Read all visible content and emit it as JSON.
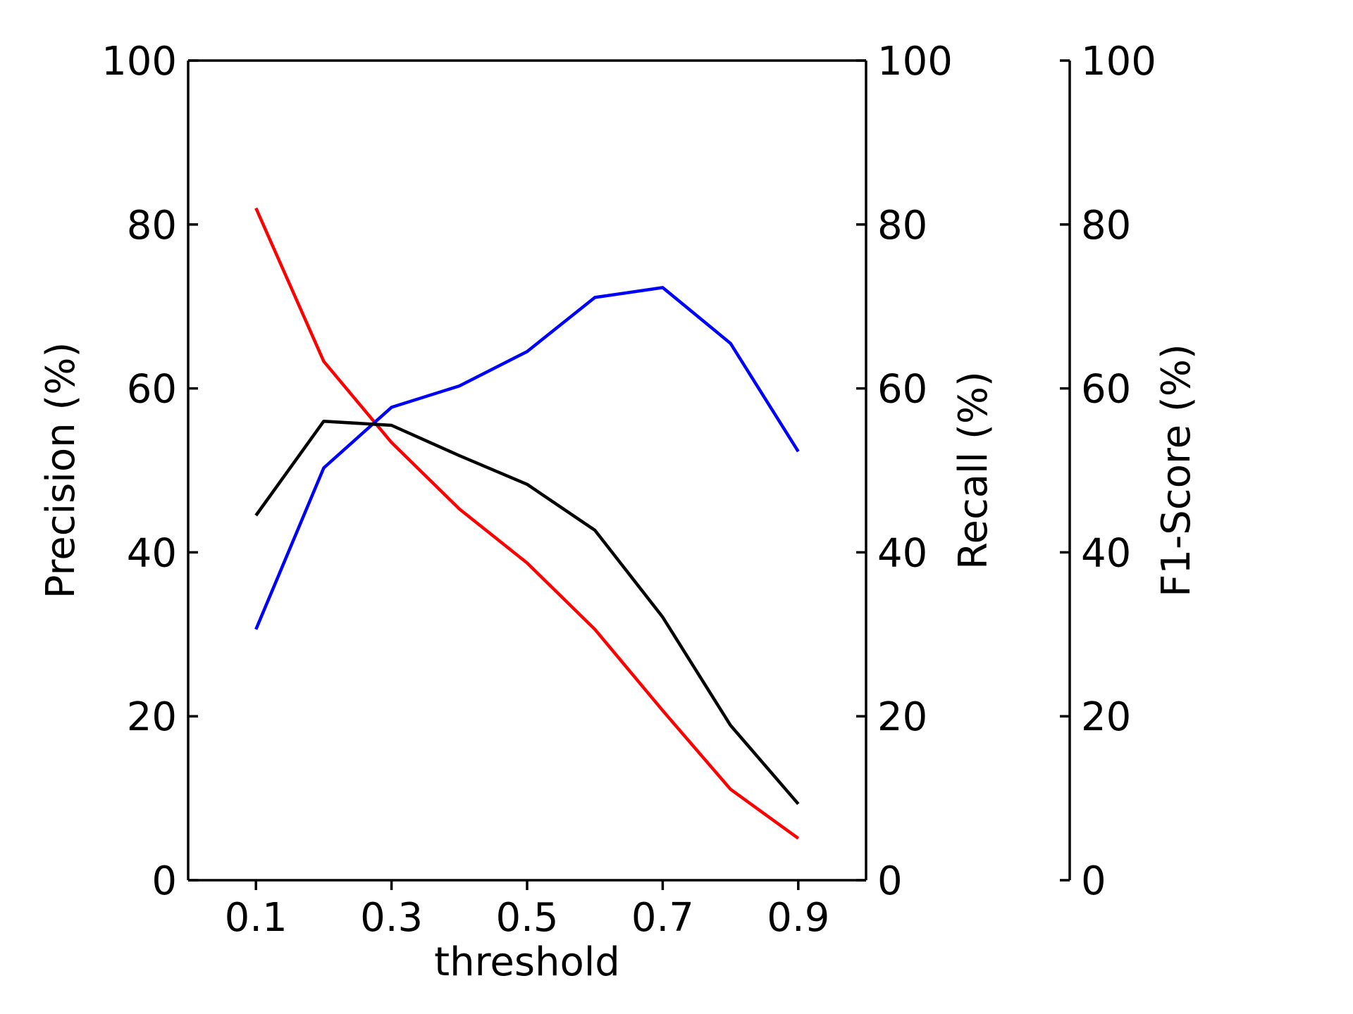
{
  "chart_data": {
    "type": "line",
    "xlabel": "threshold",
    "x_ticks": [
      "0.1",
      "0.3",
      "0.5",
      "0.7",
      "0.9"
    ],
    "x_tick_values": [
      0.1,
      0.3,
      0.5,
      0.7,
      0.9
    ],
    "xlim": [
      0.0,
      1.0
    ],
    "x": [
      0.1,
      0.2,
      0.3,
      0.4,
      0.5,
      0.6,
      0.7,
      0.8,
      0.9
    ],
    "axes": [
      {
        "id": "precision",
        "label": "Precision (%)",
        "position": "left",
        "ylim": [
          0,
          100
        ],
        "ticks": [
          "0",
          "20",
          "40",
          "60",
          "80",
          "100"
        ],
        "tick_values": [
          0,
          20,
          40,
          60,
          80,
          100
        ]
      },
      {
        "id": "recall",
        "label": "Recall (%)",
        "position": "right",
        "ylim": [
          0,
          100
        ],
        "ticks": [
          "0",
          "20",
          "40",
          "60",
          "80",
          "100"
        ],
        "tick_values": [
          0,
          20,
          40,
          60,
          80,
          100
        ]
      },
      {
        "id": "f1",
        "label": "F1-Score (%)",
        "position": "right-offset",
        "ylim": [
          0,
          100
        ],
        "ticks": [
          "0",
          "20",
          "40",
          "60",
          "80",
          "100"
        ],
        "tick_values": [
          0,
          20,
          40,
          60,
          80,
          100
        ]
      }
    ],
    "series": [
      {
        "axis": "precision",
        "color": "#ff0000",
        "values": [
          82.0,
          63.3,
          53.4,
          45.3,
          38.7,
          30.6,
          20.7,
          11.1,
          5.1
        ]
      },
      {
        "axis": "recall",
        "color": "#0000ff",
        "values": [
          30.6,
          50.3,
          57.7,
          60.3,
          64.5,
          71.1,
          72.3,
          65.5,
          52.3
        ]
      },
      {
        "axis": "f1",
        "color": "#000000",
        "values": [
          44.5,
          56.0,
          55.5,
          51.8,
          48.3,
          42.7,
          32.1,
          18.9,
          9.3
        ]
      }
    ],
    "grid": false,
    "legend": "none"
  }
}
